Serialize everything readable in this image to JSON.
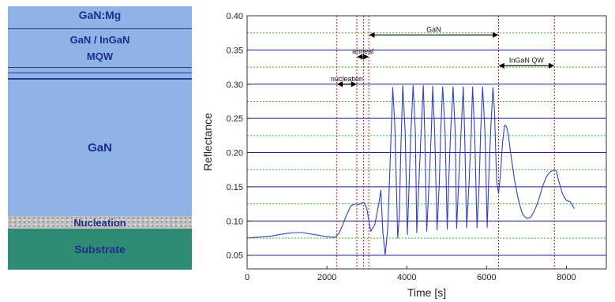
{
  "colors": {
    "layer_blue": "#8fb3e6",
    "layer_text": "#1f2d8f",
    "nucleation": "#b8b8b8",
    "substrate": "#2e8b74",
    "gridline_green": "#2db82d",
    "gridline_navy": "#1a1f8c",
    "series_line": "#3040c8",
    "marker_red": "#d01818"
  },
  "layer_stack": {
    "layers": [
      {
        "label": "GaN:Mg"
      },
      {
        "label": "GaN / InGaN"
      },
      {
        "label": "MQW"
      },
      {
        "label": "GaN"
      },
      {
        "label": "Nucleation"
      },
      {
        "label": "Substrate"
      }
    ]
  },
  "chart_data": {
    "type": "line",
    "xlabel": "Time [s]",
    "ylabel": "Reflectance",
    "xlim": [
      0,
      9000
    ],
    "ylim": [
      0.03,
      0.4
    ],
    "x_ticks": [
      "0",
      "2000",
      "4000",
      "6000",
      "8000"
    ],
    "y_ticks": [
      "0.05",
      "0.10",
      "0.15",
      "0.20",
      "0.25",
      "0.30",
      "0.35",
      "0.40"
    ],
    "y_tick_values": [
      0.05,
      0.1,
      0.15,
      0.2,
      0.25,
      0.3,
      0.35,
      0.4
    ],
    "gridlines": [
      {
        "y": 0.05,
        "style": "solid"
      },
      {
        "y": 0.075,
        "style": "dashed"
      },
      {
        "y": 0.1,
        "style": "solid"
      },
      {
        "y": 0.125,
        "style": "dashed"
      },
      {
        "y": 0.15,
        "style": "solid"
      },
      {
        "y": 0.175,
        "style": "dashed"
      },
      {
        "y": 0.2,
        "style": "solid"
      },
      {
        "y": 0.225,
        "style": "dashed"
      },
      {
        "y": 0.25,
        "style": "solid"
      },
      {
        "y": 0.275,
        "style": "dashed"
      },
      {
        "y": 0.3,
        "style": "solid"
      },
      {
        "y": 0.325,
        "style": "dashed"
      },
      {
        "y": 0.35,
        "style": "solid"
      },
      {
        "y": 0.375,
        "style": "dashed"
      }
    ],
    "phase_markers": [
      2250,
      2750,
      2920,
      3050,
      6300,
      7700
    ],
    "annotations": [
      {
        "label": "nucleation",
        "x_start": 2250,
        "x_end": 2750,
        "y": 0.3
      },
      {
        "label": "anneal",
        "x_start": 2750,
        "x_end": 3050,
        "y": 0.34
      },
      {
        "label": "GaN",
        "x_start": 3050,
        "x_end": 6300,
        "y": 0.372
      },
      {
        "label": "InGaN QW",
        "x_start": 6300,
        "x_end": 7700,
        "y": 0.327
      }
    ],
    "series": [
      {
        "x": [
          0,
          200,
          400,
          600,
          800,
          1000,
          1200,
          1400,
          1600,
          1800,
          2000,
          2200,
          2300,
          2400,
          2500,
          2600,
          2700,
          2800,
          2900,
          2950,
          3000,
          3050,
          3100,
          3200,
          3300,
          3350,
          3400,
          3460,
          3525,
          3575,
          3610,
          3650,
          3700,
          3775,
          3815,
          3850,
          3900,
          3960,
          4015,
          4050,
          4100,
          4160,
          4215,
          4250,
          4300,
          4360,
          4415,
          4450,
          4500,
          4560,
          4615,
          4650,
          4700,
          4760,
          4815,
          4850,
          4900,
          4960,
          5015,
          5050,
          5100,
          5160,
          5215,
          5250,
          5300,
          5360,
          5415,
          5450,
          5500,
          5560,
          5615,
          5650,
          5700,
          5760,
          5815,
          5850,
          5900,
          5960,
          6015,
          6050,
          6100,
          6160,
          6200,
          6250,
          6300,
          6350,
          6400,
          6450,
          6500,
          6550,
          6600,
          6700,
          6800,
          6900,
          7000,
          7100,
          7200,
          7300,
          7400,
          7500,
          7600,
          7700,
          7750,
          7800,
          7850,
          7900,
          8000,
          8100,
          8200
        ],
        "y": [
          0.075,
          0.076,
          0.077,
          0.078,
          0.08,
          0.082,
          0.083,
          0.083,
          0.081,
          0.079,
          0.077,
          0.076,
          0.082,
          0.095,
          0.11,
          0.122,
          0.125,
          0.124,
          0.127,
          0.126,
          0.118,
          0.1,
          0.085,
          0.095,
          0.125,
          0.145,
          0.085,
          0.05,
          0.09,
          0.17,
          0.23,
          0.295,
          0.24,
          0.075,
          0.11,
          0.2,
          0.298,
          0.23,
          0.08,
          0.14,
          0.225,
          0.298,
          0.23,
          0.083,
          0.15,
          0.23,
          0.298,
          0.23,
          0.085,
          0.155,
          0.23,
          0.297,
          0.23,
          0.087,
          0.155,
          0.23,
          0.296,
          0.23,
          0.088,
          0.155,
          0.23,
          0.296,
          0.23,
          0.089,
          0.155,
          0.23,
          0.296,
          0.23,
          0.09,
          0.155,
          0.23,
          0.296,
          0.23,
          0.09,
          0.155,
          0.23,
          0.296,
          0.23,
          0.09,
          0.155,
          0.23,
          0.295,
          0.26,
          0.16,
          0.14,
          0.17,
          0.215,
          0.24,
          0.238,
          0.225,
          0.2,
          0.16,
          0.13,
          0.11,
          0.104,
          0.105,
          0.115,
          0.13,
          0.15,
          0.165,
          0.172,
          0.175,
          0.173,
          0.16,
          0.15,
          0.14,
          0.13,
          0.128,
          0.118
        ]
      }
    ]
  }
}
